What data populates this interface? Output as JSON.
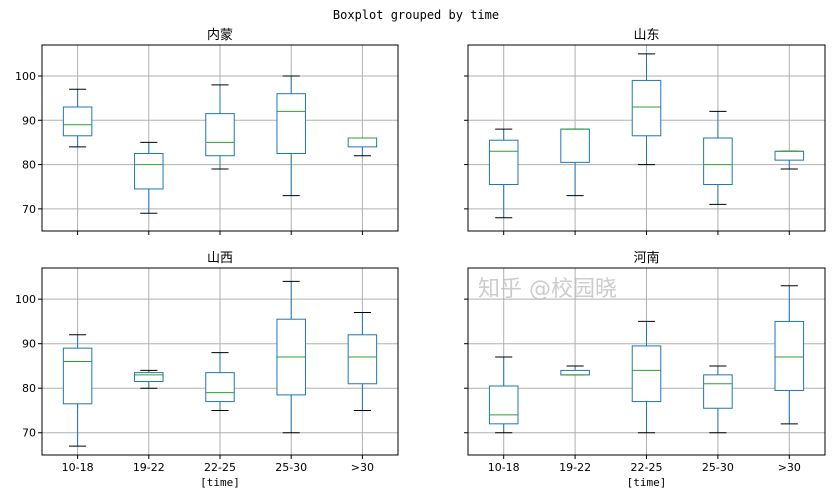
{
  "chart_data": {
    "type": "boxplot",
    "title": "Boxplot grouped by time",
    "xlabel": "[time]",
    "categories": [
      "10-18",
      "19-22",
      "22-25",
      "25-30",
      ">30"
    ],
    "ylim": [
      65,
      107
    ],
    "yticks": [
      70,
      80,
      90,
      100
    ],
    "grid": true,
    "colors": {
      "box": "#1f77b4",
      "median": "#2ca02c",
      "cap": "#000000",
      "grid": "#b0b0b0"
    },
    "panels": [
      {
        "title": "内蒙",
        "boxes": [
          {
            "low": 84,
            "q1": 86.5,
            "median": 89,
            "q3": 93,
            "high": 97
          },
          {
            "low": 69,
            "q1": 74.5,
            "median": 80,
            "q3": 82.5,
            "high": 85
          },
          {
            "low": 79,
            "q1": 82,
            "median": 85,
            "q3": 91.5,
            "high": 98
          },
          {
            "low": 73,
            "q1": 82.5,
            "median": 92,
            "q3": 96,
            "high": 100
          },
          {
            "low": 82,
            "q1": 84,
            "median": 86,
            "q3": 86,
            "high": 86
          }
        ]
      },
      {
        "title": "山东",
        "boxes": [
          {
            "low": 68,
            "q1": 75.5,
            "median": 83,
            "q3": 85.5,
            "high": 88
          },
          {
            "low": 73,
            "q1": 80.5,
            "median": 88,
            "q3": 88,
            "high": 88
          },
          {
            "low": 80,
            "q1": 86.5,
            "median": 93,
            "q3": 99,
            "high": 105
          },
          {
            "low": 71,
            "q1": 75.5,
            "median": 80,
            "q3": 86,
            "high": 92
          },
          {
            "low": 79,
            "q1": 81,
            "median": 83,
            "q3": 83,
            "high": 83
          }
        ]
      },
      {
        "title": "山西",
        "boxes": [
          {
            "low": 67,
            "q1": 76.5,
            "median": 86,
            "q3": 89,
            "high": 92
          },
          {
            "low": 80,
            "q1": 81.5,
            "median": 83,
            "q3": 83.5,
            "high": 84
          },
          {
            "low": 75,
            "q1": 77,
            "median": 79,
            "q3": 83.5,
            "high": 88
          },
          {
            "low": 70,
            "q1": 78.5,
            "median": 87,
            "q3": 95.5,
            "high": 104
          },
          {
            "low": 75,
            "q1": 81,
            "median": 87,
            "q3": 92,
            "high": 97
          }
        ]
      },
      {
        "title": "河南",
        "boxes": [
          {
            "low": 70,
            "q1": 72,
            "median": 74,
            "q3": 80.5,
            "high": 87
          },
          {
            "low": 83,
            "q1": 83,
            "median": 83,
            "q3": 84,
            "high": 85
          },
          {
            "low": 70,
            "q1": 77,
            "median": 84,
            "q3": 89.5,
            "high": 95
          },
          {
            "low": 70,
            "q1": 75.5,
            "median": 81,
            "q3": 83,
            "high": 85
          },
          {
            "low": 72,
            "q1": 79.5,
            "median": 87,
            "q3": 95,
            "high": 103
          }
        ]
      }
    ]
  },
  "watermark": "知乎 @校园晓"
}
